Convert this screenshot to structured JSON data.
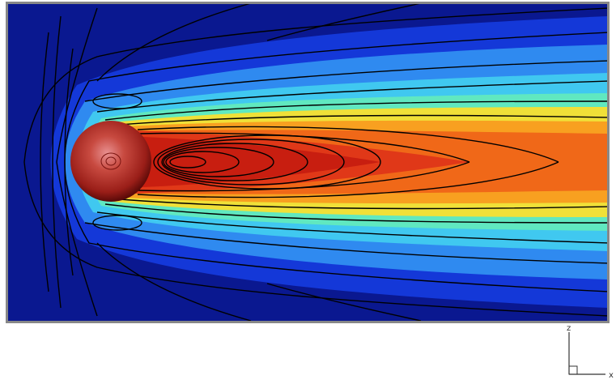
{
  "axes_triad": {
    "vertical_label": "z",
    "horizontal_label": "x"
  }
}
